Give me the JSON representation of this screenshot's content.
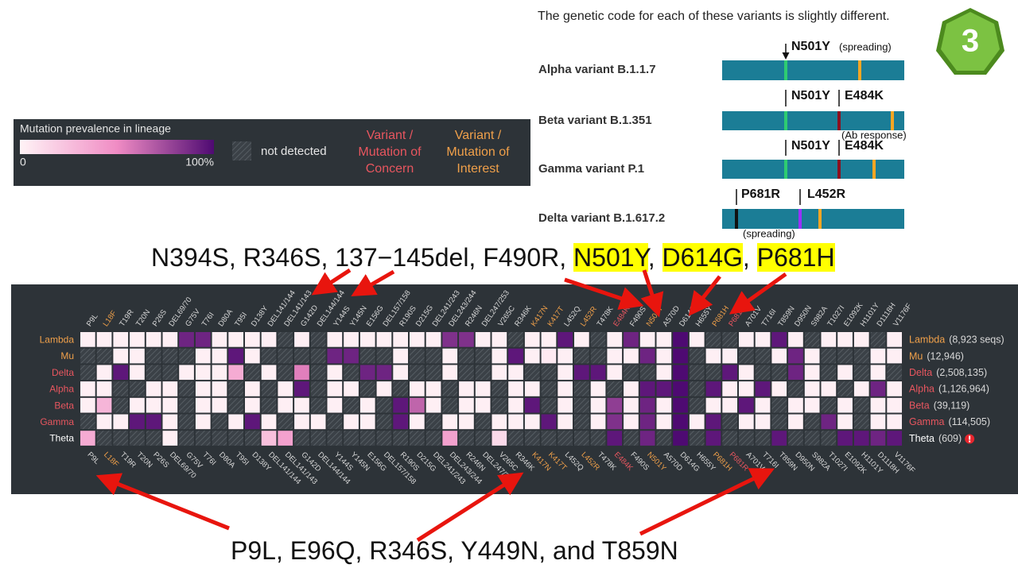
{
  "slide": {
    "intro": "The genetic code for each of these variants is slightly different.",
    "badge": "3"
  },
  "variants": [
    {
      "name": "Alpha variant B.1.1.7",
      "annotations": [
        "N501Y",
        "(spreading)"
      ]
    },
    {
      "name": "Beta variant B.1.351",
      "annotations": [
        "N501Y",
        "E484K",
        "(Ab response)"
      ]
    },
    {
      "name": "Gamma variant P.1",
      "annotations": [
        "N501Y",
        "E484K"
      ]
    },
    {
      "name": "Delta variant B.1.617.2",
      "annotations": [
        "P681R",
        "L452R",
        "(spreading)"
      ]
    }
  ],
  "legend": {
    "title": "Mutation prevalence in lineage",
    "min_label": "0",
    "max_label": "100%",
    "not_detected": "not detected",
    "concern": "Variant / Mutation of Concern",
    "interest": "Variant / Mutation of Interest",
    "concern_color": "#e8565f",
    "interest_color": "#f0a04a"
  },
  "heatmap": {
    "scale": [
      "#fff3f6",
      "#f08cc4",
      "#4e0a72"
    ],
    "columns": [
      {
        "label": "P9L"
      },
      {
        "label": "L18F",
        "color": "#f0a04a"
      },
      {
        "label": "T19R"
      },
      {
        "label": "T20N"
      },
      {
        "label": "P26S"
      },
      {
        "label": "DEL69/70"
      },
      {
        "label": "G75V"
      },
      {
        "label": "T76I"
      },
      {
        "label": "D80A"
      },
      {
        "label": "T95I"
      },
      {
        "label": "D138Y"
      },
      {
        "label": "DEL141/144"
      },
      {
        "label": "DEL141/143"
      },
      {
        "label": "G142D"
      },
      {
        "label": "DEL144/144"
      },
      {
        "label": "Y144S"
      },
      {
        "label": "Y145N"
      },
      {
        "label": "E156G"
      },
      {
        "label": "DEL157/158"
      },
      {
        "label": "R190S"
      },
      {
        "label": "D215G"
      },
      {
        "label": "DEL241/243"
      },
      {
        "label": "DEL243/244"
      },
      {
        "label": "R246N"
      },
      {
        "label": "DEL247/253"
      },
      {
        "label": "V265C"
      },
      {
        "label": "R346K"
      },
      {
        "label": "K417N",
        "color": "#f0a04a"
      },
      {
        "label": "K417T",
        "color": "#f0a04a"
      },
      {
        "label": "L452Q"
      },
      {
        "label": "L452R",
        "color": "#f0a04a"
      },
      {
        "label": "T478K"
      },
      {
        "label": "E484K",
        "color": "#e8565f"
      },
      {
        "label": "F490S"
      },
      {
        "label": "N501Y",
        "color": "#f0a04a"
      },
      {
        "label": "A570D"
      },
      {
        "label": "D614G"
      },
      {
        "label": "H655Y"
      },
      {
        "label": "P681H",
        "color": "#f0a04a"
      },
      {
        "label": "P681R",
        "color": "#e8565f"
      },
      {
        "label": "A701V"
      },
      {
        "label": "T716I"
      },
      {
        "label": "T859N"
      },
      {
        "label": "D950N"
      },
      {
        "label": "S982A"
      },
      {
        "label": "T1027I"
      },
      {
        "label": "E1092K"
      },
      {
        "label": "H1101Y"
      },
      {
        "label": "D1118H"
      },
      {
        "label": "V1176F"
      }
    ],
    "rows": [
      {
        "name": "Lambda",
        "count": "(8,923 seqs)",
        "color": "#f0a04a",
        "values": [
          2,
          2,
          2,
          2,
          2,
          2,
          90,
          90,
          2,
          2,
          2,
          2,
          null,
          2,
          null,
          2,
          2,
          2,
          2,
          2,
          2,
          2,
          85,
          85,
          2,
          2,
          null,
          2,
          2,
          95,
          2,
          null,
          2,
          90,
          2,
          2,
          100,
          2,
          null,
          null,
          2,
          2,
          95,
          2,
          null,
          2,
          2,
          2,
          null,
          2
        ]
      },
      {
        "name": "Mu",
        "count": "(12,946)",
        "color": "#f0a04a",
        "values": [
          null,
          null,
          2,
          2,
          null,
          null,
          null,
          2,
          2,
          95,
          2,
          null,
          null,
          null,
          null,
          90,
          90,
          null,
          null,
          2,
          null,
          null,
          2,
          null,
          null,
          2,
          95,
          2,
          5,
          2,
          null,
          null,
          2,
          2,
          90,
          2,
          100,
          null,
          2,
          2,
          null,
          null,
          2,
          90,
          2,
          null,
          null,
          null,
          2,
          2
        ]
      },
      {
        "name": "Delta",
        "count": "(2,508,135)",
        "color": "#e8565f",
        "values": [
          null,
          2,
          95,
          2,
          null,
          null,
          2,
          2,
          2,
          35,
          null,
          2,
          null,
          55,
          null,
          2,
          null,
          90,
          90,
          2,
          null,
          null,
          2,
          null,
          null,
          2,
          2,
          null,
          null,
          2,
          95,
          95,
          2,
          null,
          null,
          2,
          100,
          null,
          null,
          95,
          2,
          null,
          null,
          90,
          2,
          null,
          2,
          null,
          2,
          null
        ]
      },
      {
        "name": "Alpha",
        "count": "(1,126,964)",
        "color": "#e8565f",
        "values": [
          2,
          2,
          null,
          null,
          2,
          2,
          null,
          2,
          2,
          null,
          2,
          null,
          2,
          95,
          null,
          2,
          2,
          null,
          2,
          null,
          2,
          2,
          null,
          2,
          2,
          null,
          2,
          2,
          null,
          2,
          null,
          2,
          null,
          2,
          95,
          95,
          100,
          null,
          95,
          2,
          2,
          95,
          2,
          null,
          2,
          2,
          null,
          2,
          90,
          2
        ]
      },
      {
        "name": "Beta",
        "count": "(39,119)",
        "color": "#e8565f",
        "values": [
          2,
          30,
          null,
          2,
          2,
          2,
          null,
          2,
          2,
          null,
          2,
          null,
          2,
          2,
          null,
          2,
          null,
          2,
          null,
          95,
          65,
          2,
          null,
          2,
          2,
          null,
          2,
          95,
          null,
          2,
          null,
          2,
          80,
          2,
          90,
          2,
          100,
          null,
          2,
          2,
          95,
          2,
          null,
          2,
          2,
          null,
          2,
          null,
          2,
          2
        ]
      },
      {
        "name": "Gamma",
        "count": "(114,505)",
        "color": "#e8565f",
        "values": [
          null,
          2,
          2,
          95,
          95,
          2,
          null,
          2,
          null,
          2,
          95,
          2,
          null,
          2,
          2,
          null,
          2,
          2,
          null,
          95,
          2,
          null,
          2,
          2,
          null,
          2,
          2,
          2,
          95,
          2,
          null,
          2,
          85,
          2,
          90,
          2,
          100,
          2,
          95,
          null,
          2,
          2,
          null,
          2,
          null,
          90,
          2,
          null,
          2,
          2
        ]
      },
      {
        "name": "Theta",
        "count": "(609)",
        "color": "#ffffff",
        "values": [
          35,
          null,
          null,
          null,
          null,
          2,
          null,
          null,
          null,
          null,
          null,
          25,
          40,
          null,
          null,
          null,
          null,
          null,
          null,
          null,
          null,
          null,
          40,
          null,
          null,
          12,
          null,
          null,
          null,
          null,
          null,
          null,
          95,
          null,
          90,
          null,
          100,
          null,
          95,
          null,
          null,
          null,
          95,
          null,
          null,
          null,
          95,
          95,
          90,
          95
        ]
      }
    ]
  },
  "callouts": {
    "top": [
      {
        "text": "N394S, R346S, 137−145del, F490R, "
      },
      {
        "text": "N501Y",
        "highlight": true
      },
      {
        "text": ", "
      },
      {
        "text": "D614G",
        "highlight": true
      },
      {
        "text": ", "
      },
      {
        "text": "P681H",
        "highlight": true
      }
    ],
    "bottom": "P9L, E96Q, R346S, Y449N, and T859N"
  }
}
